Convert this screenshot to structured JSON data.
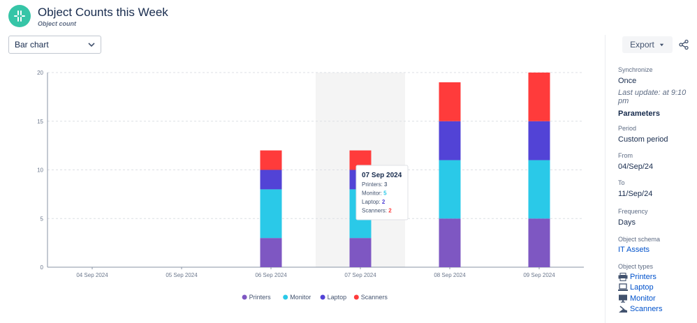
{
  "header": {
    "title": "Object Counts this Week",
    "subtitle": "Object count"
  },
  "chart_type_select": {
    "value": "Bar chart"
  },
  "toolbar": {
    "export_label": "Export"
  },
  "sidebar": {
    "synchronize_label": "Synchronize",
    "synchronize_value": "Once",
    "last_update": "Last update: at 9:10 pm",
    "parameters_title": "Parameters",
    "period_label": "Period",
    "period_value": "Custom period",
    "from_label": "From",
    "from_value": "04/Sep/24",
    "to_label": "To",
    "to_value": "11/Sep/24",
    "frequency_label": "Frequency",
    "frequency_value": "Days",
    "schema_label": "Object schema",
    "schema_value": "IT Assets",
    "types_label": "Object types",
    "types": [
      {
        "label": "Printers",
        "icon": "printer-icon"
      },
      {
        "label": "Laptop",
        "icon": "laptop-icon"
      },
      {
        "label": "Monitor",
        "icon": "monitor-icon"
      },
      {
        "label": "Scanners",
        "icon": "scanner-icon"
      }
    ]
  },
  "chart_data": {
    "type": "bar",
    "stacked": true,
    "categories": [
      "04 Sep 2024",
      "05 Sep 2024",
      "06 Sep 2024",
      "07 Sep 2024",
      "08 Sep 2024",
      "09 Sep 2024"
    ],
    "series": [
      {
        "name": "Printers",
        "color": "#7e57c2",
        "values": [
          0,
          0,
          3,
          3,
          5,
          5
        ]
      },
      {
        "name": "Monitor",
        "color": "#2ac9e8",
        "values": [
          0,
          0,
          5,
          5,
          6,
          6
        ]
      },
      {
        "name": "Laptop",
        "color": "#5243d6",
        "values": [
          0,
          0,
          2,
          2,
          4,
          4
        ]
      },
      {
        "name": "Scanners",
        "color": "#ff3b3b",
        "values": [
          0,
          0,
          2,
          2,
          4,
          5
        ]
      }
    ],
    "ylim": [
      0,
      20
    ],
    "yticks": [
      0,
      5,
      10,
      15,
      20
    ],
    "grid": true,
    "legend_position": "bottom",
    "highlighted_category": "07 Sep 2024",
    "tooltip": {
      "title": "07 Sep 2024",
      "rows": [
        {
          "label": "Printers",
          "value": "3",
          "color": "#5e6c84"
        },
        {
          "label": "Monitor",
          "value": "5",
          "color": "#2ac9e8"
        },
        {
          "label": "Laptop",
          "value": "2",
          "color": "#5243d6"
        },
        {
          "label": "Scanners",
          "value": "2",
          "color": "#ff3b3b"
        }
      ]
    }
  }
}
